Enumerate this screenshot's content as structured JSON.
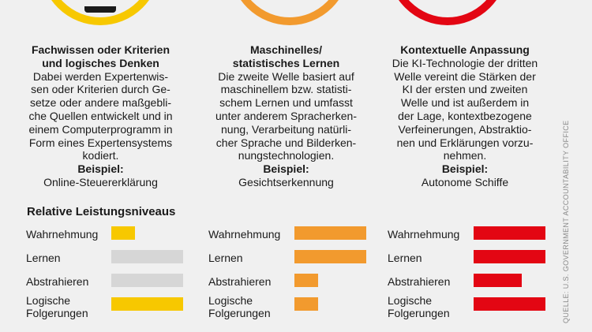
{
  "colors": {
    "background": "#f0f0f0",
    "yellow": "#f7c800",
    "orange": "#f29a2e",
    "red": "#e30613",
    "gray": "#d6d6d6",
    "text": "#1a1a1a",
    "source": "#8a8a8a"
  },
  "columns": [
    {
      "title": "Fachwissen oder Kriterien\nund logisches Denken",
      "body": "Dabei werden Expertenwis-\nsen oder Kriterien durch Ge-\nsetze oder andere maßgebli-\nche Quellen entwickelt und in\neinem Computerprogramm in\nForm eines Expertensystems\nkodiert.",
      "example_label": "Beispiel:",
      "example": "Online-Steuererklärung",
      "ring_color": "#f7c800"
    },
    {
      "title": "Maschinelles/\nstatistisches Lernen",
      "body": "Die zweite Welle basiert auf\nmaschinellem bzw. statisti-\nschem Lernen und umfasst\nunter anderem Spracherken-\nnung, Verarbeitung natürli-\ncher Sprache und Bilderken-\nnungstechnologien.",
      "example_label": "Beispiel:",
      "example": "Gesichtserkennung",
      "ring_color": "#f29a2e"
    },
    {
      "title": "Kontextuelle Anpassung",
      "body": "Die KI-Technologie der dritten\nWelle vereint die Stärken der\nKI der ersten und zweiten\nWelle und ist außerdem in\nder Lage, kontextbezogene\nVerfeinerungen, Abstraktio-\nnen und Erklärungen vorzu-\nnehmen.",
      "example_label": "Beispiel:",
      "example": "Autonome Schiffe",
      "ring_color": "#e30613"
    }
  ],
  "performance": {
    "title": "Relative Leistungsniveaus",
    "labels": [
      "Wahrnehmung",
      "Lernen",
      "Abstrahieren",
      "Logische\nFolgerungen"
    ],
    "groups": [
      {
        "color": "#f7c800",
        "bars": [
          {
            "fraction": 0.33,
            "color": "#f7c800"
          },
          {
            "fraction": 1.0,
            "color": "#d6d6d6"
          },
          {
            "fraction": 1.0,
            "color": "#d6d6d6"
          },
          {
            "fraction": 1.0,
            "color": "#f7c800"
          }
        ]
      },
      {
        "color": "#f29a2e",
        "bars": [
          {
            "fraction": 1.0,
            "color": "#f29a2e"
          },
          {
            "fraction": 1.0,
            "color": "#f29a2e"
          },
          {
            "fraction": 0.33,
            "color": "#f29a2e"
          },
          {
            "fraction": 0.33,
            "color": "#f29a2e"
          }
        ]
      },
      {
        "color": "#e30613",
        "bars": [
          {
            "fraction": 1.0,
            "color": "#e30613"
          },
          {
            "fraction": 1.0,
            "color": "#e30613"
          },
          {
            "fraction": 0.67,
            "color": "#e30613"
          },
          {
            "fraction": 1.0,
            "color": "#e30613"
          }
        ]
      }
    ]
  },
  "source": "QUELLE: U.S. GOVERNMENT ACCOUNTABILITY OFFICE"
}
